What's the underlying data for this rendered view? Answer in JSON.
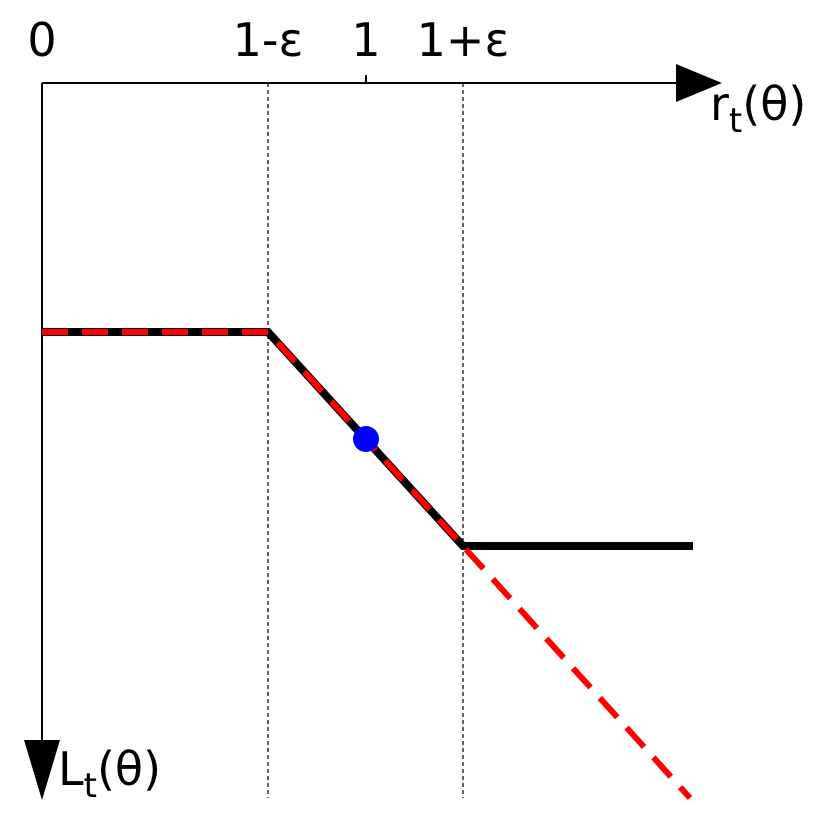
{
  "ticks": [
    "0",
    "1-ε",
    "1",
    "1+ε"
  ],
  "x_axis_label": {
    "base": "r",
    "sub": "t",
    "arg": "(θ)"
  },
  "y_axis_label": {
    "base": "L",
    "sub": "t",
    "arg": "(θ)"
  }
}
